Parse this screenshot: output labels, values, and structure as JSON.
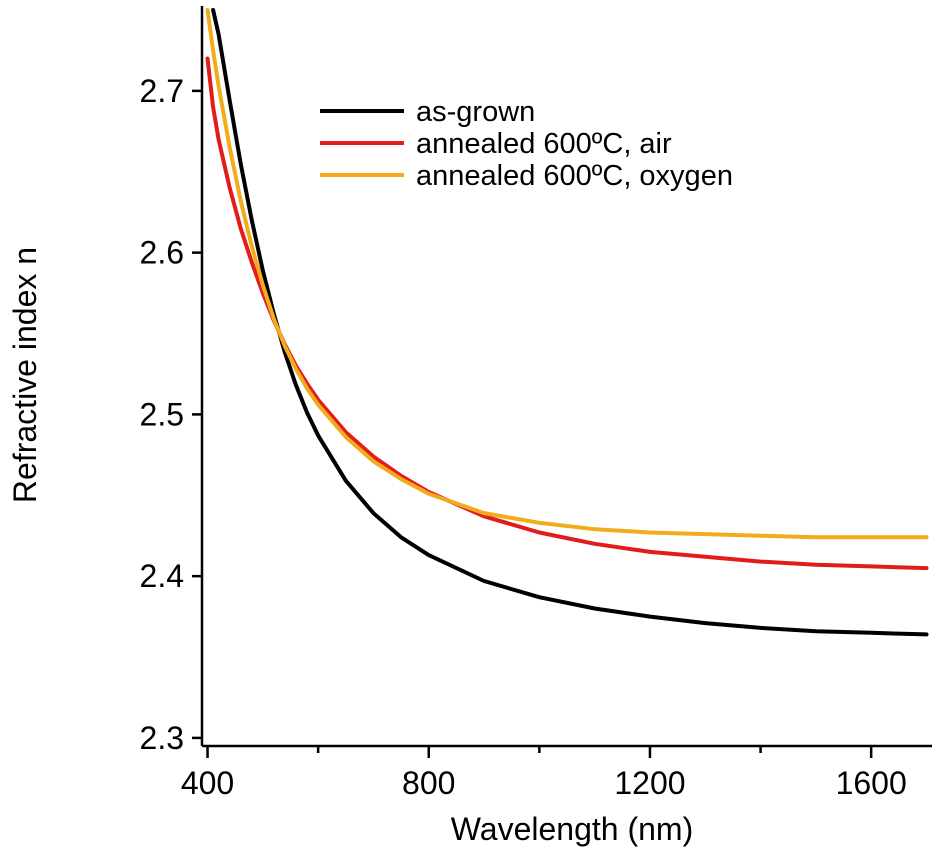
{
  "chart_data": {
    "type": "line",
    "title": "",
    "xlabel": "Wavelength (nm)",
    "ylabel": "Refractive index n",
    "xlim": [
      390,
      1710
    ],
    "ylim": [
      2.295,
      2.75
    ],
    "x_ticks_major": [
      400,
      800,
      1200,
      1600
    ],
    "x_tick_labels": [
      "400",
      "800",
      "1200",
      "1600"
    ],
    "x_ticks_minor": [
      600,
      1000,
      1400
    ],
    "y_ticks": [
      2.3,
      2.4,
      2.5,
      2.6,
      2.7
    ],
    "y_tick_labels": [
      "2.3",
      "2.4",
      "2.5",
      "2.6",
      "2.7"
    ],
    "grid": false,
    "legend_position": "top-right",
    "series": [
      {
        "name": "as-grown",
        "color": "#000000",
        "x": [
          410,
          420,
          440,
          460,
          480,
          500,
          520,
          540,
          560,
          580,
          600,
          650,
          700,
          750,
          800,
          900,
          1000,
          1100,
          1200,
          1300,
          1400,
          1500,
          1600,
          1700
        ],
        "y": [
          2.75,
          2.735,
          2.694,
          2.655,
          2.62,
          2.589,
          2.562,
          2.538,
          2.518,
          2.501,
          2.487,
          2.459,
          2.439,
          2.424,
          2.413,
          2.397,
          2.387,
          2.38,
          2.375,
          2.371,
          2.368,
          2.366,
          2.365,
          2.364
        ]
      },
      {
        "name": "annealed 600ºC, air",
        "color": "#e21b1b",
        "x": [
          400,
          410,
          420,
          440,
          460,
          480,
          500,
          520,
          540,
          560,
          580,
          600,
          650,
          700,
          750,
          800,
          900,
          1000,
          1100,
          1200,
          1300,
          1400,
          1500,
          1600,
          1700
        ],
        "y": [
          2.72,
          2.69,
          2.67,
          2.64,
          2.615,
          2.594,
          2.575,
          2.558,
          2.543,
          2.53,
          2.519,
          2.509,
          2.489,
          2.474,
          2.462,
          2.452,
          2.437,
          2.427,
          2.42,
          2.415,
          2.412,
          2.409,
          2.407,
          2.406,
          2.405
        ]
      },
      {
        "name": "annealed 600ºC, oxygen",
        "color": "#f0ac1c",
        "x": [
          400,
          410,
          420,
          440,
          460,
          480,
          500,
          520,
          540,
          560,
          580,
          600,
          650,
          700,
          750,
          800,
          900,
          1000,
          1100,
          1200,
          1300,
          1400,
          1500,
          1600,
          1700
        ],
        "y": [
          2.75,
          2.725,
          2.703,
          2.665,
          2.632,
          2.604,
          2.58,
          2.559,
          2.542,
          2.528,
          2.516,
          2.506,
          2.486,
          2.471,
          2.46,
          2.451,
          2.439,
          2.433,
          2.429,
          2.427,
          2.426,
          2.425,
          2.424,
          2.424,
          2.424
        ]
      }
    ]
  }
}
